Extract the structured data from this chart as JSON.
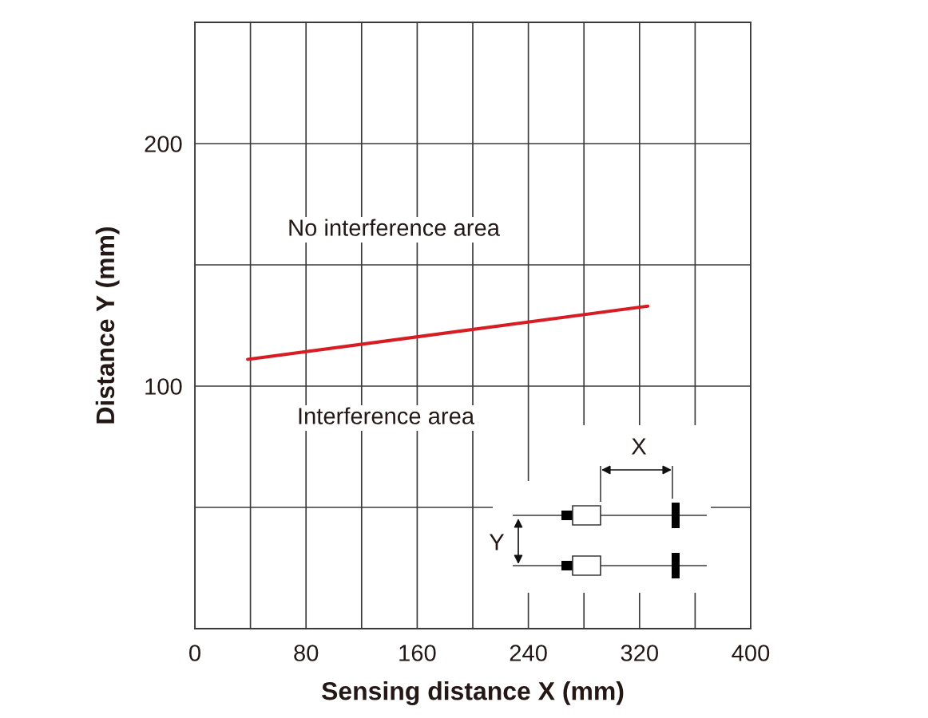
{
  "chart_data": {
    "type": "line",
    "xlabel": "Sensing distance X (mm)",
    "ylabel": "Distance Y (mm)",
    "x": [
      38,
      326
    ],
    "series": [
      {
        "color": "#d81c23",
        "values": [
          111,
          133
        ]
      }
    ],
    "xlim": [
      0,
      400
    ],
    "ylim": [
      0,
      250
    ],
    "xticks": [
      0,
      {
        "value": 40,
        "label": null
      },
      80,
      {
        "value": 120,
        "label": null
      },
      160,
      {
        "value": 200,
        "label": null
      },
      240,
      {
        "value": 280,
        "label": null
      },
      320,
      {
        "value": 360,
        "label": null
      },
      400
    ],
    "yticks": [
      {
        "value": 50,
        "label": null
      },
      100,
      {
        "value": 150,
        "label": null
      },
      200
    ],
    "grid": true,
    "line_style": "solid",
    "annotations": [
      "No interference area",
      "Interference area",
      "X",
      "Y"
    ]
  }
}
